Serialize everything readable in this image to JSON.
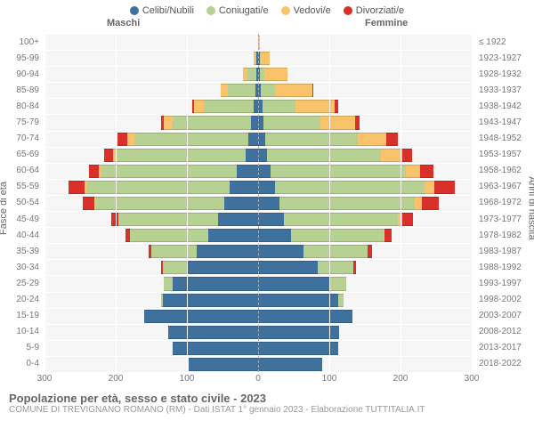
{
  "legend": [
    {
      "label": "Celibi/Nubili",
      "color": "#3f719e"
    },
    {
      "label": "Coniugati/e",
      "color": "#b6d192"
    },
    {
      "label": "Vedovi/e",
      "color": "#f9c36b"
    },
    {
      "label": "Divorziati/e",
      "color": "#d9302a"
    }
  ],
  "header_male": "Maschi",
  "header_female": "Femmine",
  "axis_left_label": "Fasce di età",
  "axis_right_label": "Anni di nascita",
  "title": "Popolazione per età, sesso e stato civile - 2023",
  "subtitle": "COMUNE DI TREVIGNANO ROMANO (RM) - Dati ISTAT 1° gennaio 2023 - Elaborazione TUTTITALIA.IT",
  "chart": {
    "type": "population-pyramid",
    "x_max": 300,
    "x_ticks": [
      300,
      200,
      100,
      0,
      100,
      200,
      300
    ],
    "background": "#f6f6f6",
    "grid_color": "#ffffff",
    "center_line_color": "#aaaaaa",
    "colors": {
      "single": "#3f719e",
      "married": "#b6d192",
      "widowed": "#f9c36b",
      "divorced": "#d9302a"
    },
    "rows": [
      {
        "age": "100+",
        "year": "≤ 1922",
        "m": {
          "single": 0,
          "married": 0,
          "widowed": 0,
          "divorced": 0
        },
        "f": {
          "single": 0,
          "married": 0,
          "widowed": 3,
          "divorced": 0
        }
      },
      {
        "age": "95-99",
        "year": "1923-1927",
        "m": {
          "single": 2,
          "married": 2,
          "widowed": 2,
          "divorced": 0
        },
        "f": {
          "single": 2,
          "married": 2,
          "widowed": 12,
          "divorced": 0
        }
      },
      {
        "age": "90-94",
        "year": "1928-1932",
        "m": {
          "single": 3,
          "married": 12,
          "widowed": 6,
          "divorced": 0
        },
        "f": {
          "single": 3,
          "married": 6,
          "widowed": 32,
          "divorced": 0
        }
      },
      {
        "age": "85-89",
        "year": "1933-1937",
        "m": {
          "single": 4,
          "married": 38,
          "widowed": 10,
          "divorced": 0
        },
        "f": {
          "single": 4,
          "married": 20,
          "widowed": 52,
          "divorced": 2
        }
      },
      {
        "age": "80-84",
        "year": "1938-1942",
        "m": {
          "single": 6,
          "married": 70,
          "widowed": 14,
          "divorced": 2
        },
        "f": {
          "single": 6,
          "married": 46,
          "widowed": 56,
          "divorced": 4
        }
      },
      {
        "age": "75-79",
        "year": "1943-1947",
        "m": {
          "single": 10,
          "married": 110,
          "widowed": 12,
          "divorced": 4
        },
        "f": {
          "single": 8,
          "married": 80,
          "widowed": 48,
          "divorced": 6
        }
      },
      {
        "age": "70-74",
        "year": "1948-1952",
        "m": {
          "single": 14,
          "married": 160,
          "widowed": 10,
          "divorced": 14
        },
        "f": {
          "single": 10,
          "married": 130,
          "widowed": 40,
          "divorced": 16
        }
      },
      {
        "age": "65-69",
        "year": "1953-1957",
        "m": {
          "single": 18,
          "married": 180,
          "widowed": 6,
          "divorced": 12
        },
        "f": {
          "single": 12,
          "married": 160,
          "widowed": 30,
          "divorced": 14
        }
      },
      {
        "age": "60-64",
        "year": "1958-1962",
        "m": {
          "single": 30,
          "married": 190,
          "widowed": 4,
          "divorced": 14
        },
        "f": {
          "single": 18,
          "married": 190,
          "widowed": 20,
          "divorced": 18
        }
      },
      {
        "age": "55-59",
        "year": "1963-1967",
        "m": {
          "single": 40,
          "married": 200,
          "widowed": 4,
          "divorced": 22
        },
        "f": {
          "single": 24,
          "married": 210,
          "widowed": 14,
          "divorced": 28
        }
      },
      {
        "age": "50-54",
        "year": "1968-1972",
        "m": {
          "single": 48,
          "married": 180,
          "widowed": 2,
          "divorced": 16
        },
        "f": {
          "single": 30,
          "married": 190,
          "widowed": 10,
          "divorced": 24
        }
      },
      {
        "age": "45-49",
        "year": "1973-1977",
        "m": {
          "single": 56,
          "married": 140,
          "widowed": 0,
          "divorced": 10
        },
        "f": {
          "single": 36,
          "married": 160,
          "widowed": 6,
          "divorced": 16
        }
      },
      {
        "age": "40-44",
        "year": "1978-1982",
        "m": {
          "single": 70,
          "married": 110,
          "widowed": 0,
          "divorced": 6
        },
        "f": {
          "single": 46,
          "married": 130,
          "widowed": 2,
          "divorced": 10
        }
      },
      {
        "age": "35-39",
        "year": "1983-1987",
        "m": {
          "single": 86,
          "married": 64,
          "widowed": 0,
          "divorced": 4
        },
        "f": {
          "single": 64,
          "married": 90,
          "widowed": 0,
          "divorced": 6
        }
      },
      {
        "age": "30-34",
        "year": "1988-1992",
        "m": {
          "single": 100,
          "married": 34,
          "widowed": 0,
          "divorced": 2
        },
        "f": {
          "single": 84,
          "married": 50,
          "widowed": 0,
          "divorced": 4
        }
      },
      {
        "age": "25-29",
        "year": "1993-1997",
        "m": {
          "single": 120,
          "married": 12,
          "widowed": 0,
          "divorced": 0
        },
        "f": {
          "single": 100,
          "married": 24,
          "widowed": 0,
          "divorced": 0
        }
      },
      {
        "age": "20-24",
        "year": "1998-2002",
        "m": {
          "single": 134,
          "married": 2,
          "widowed": 0,
          "divorced": 0
        },
        "f": {
          "single": 112,
          "married": 8,
          "widowed": 0,
          "divorced": 0
        }
      },
      {
        "age": "15-19",
        "year": "2003-2007",
        "m": {
          "single": 160,
          "married": 0,
          "widowed": 0,
          "divorced": 0
        },
        "f": {
          "single": 132,
          "married": 0,
          "widowed": 0,
          "divorced": 0
        }
      },
      {
        "age": "10-14",
        "year": "2008-2012",
        "m": {
          "single": 126,
          "married": 0,
          "widowed": 0,
          "divorced": 0
        },
        "f": {
          "single": 114,
          "married": 0,
          "widowed": 0,
          "divorced": 0
        }
      },
      {
        "age": "5-9",
        "year": "2013-2017",
        "m": {
          "single": 120,
          "married": 0,
          "widowed": 0,
          "divorced": 0
        },
        "f": {
          "single": 112,
          "married": 0,
          "widowed": 0,
          "divorced": 0
        }
      },
      {
        "age": "0-4",
        "year": "2018-2022",
        "m": {
          "single": 98,
          "married": 0,
          "widowed": 0,
          "divorced": 0
        },
        "f": {
          "single": 90,
          "married": 0,
          "widowed": 0,
          "divorced": 0
        }
      }
    ]
  }
}
